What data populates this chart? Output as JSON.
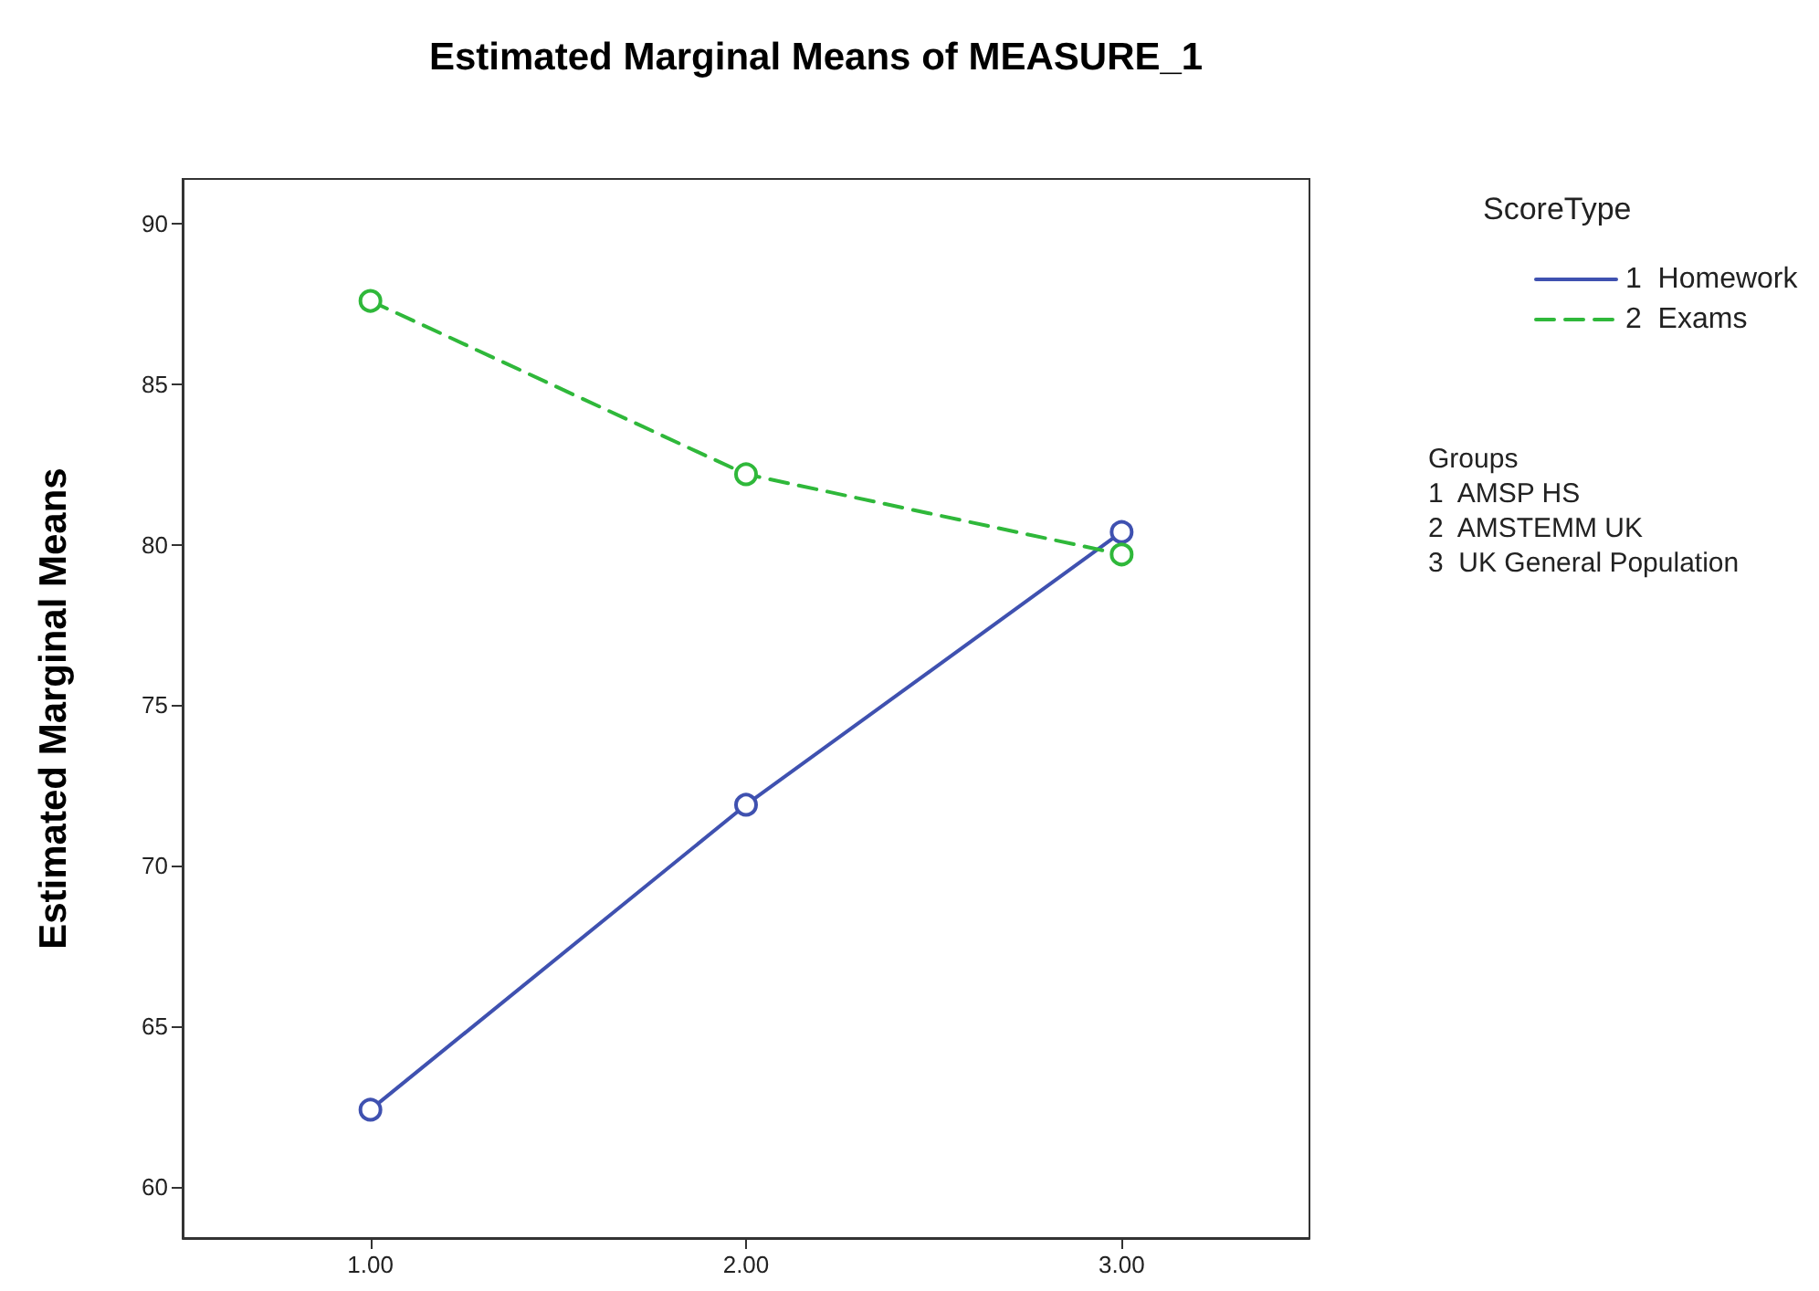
{
  "chart_data": {
    "type": "line",
    "title": "Estimated Marginal Means of MEASURE_1",
    "ylabel": "Estimated Marginal Means",
    "legend_title": "ScoreType",
    "categories": [
      "1.00",
      "2.00",
      "3.00"
    ],
    "series": [
      {
        "name": "1  Homework",
        "color": "#3f51b0",
        "line_style": "solid",
        "values": [
          62.4,
          71.9,
          80.4
        ]
      },
      {
        "name": "2  Exams",
        "color": "#2fb83a",
        "line_style": "dashed",
        "values": [
          87.6,
          82.2,
          79.7
        ]
      }
    ],
    "ylim": [
      58.4,
      91.4
    ],
    "yticks": [
      60,
      65,
      70,
      75,
      80,
      85,
      90
    ],
    "grid": false,
    "legend": "right",
    "marker": "circle",
    "annotations": [
      "Groups",
      "1  AMSP HS",
      "2  AMSTEMM UK",
      "3  UK General Population"
    ]
  }
}
